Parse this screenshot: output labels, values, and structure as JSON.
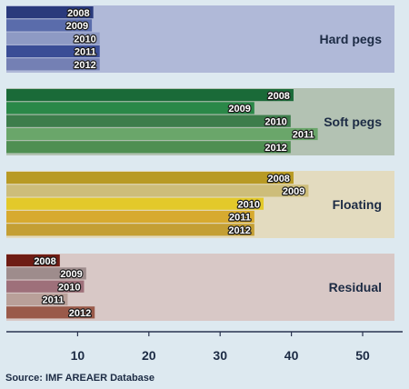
{
  "chart_data": {
    "type": "bar",
    "orientation": "horizontal",
    "source": "Source: IMF AREAER Database",
    "x_ticks": [
      10,
      20,
      30,
      40,
      50
    ],
    "xlim": [
      0,
      55
    ],
    "grid": false,
    "groups": [
      {
        "name": "Hard pegs",
        "panel_color": "#b0b9d8",
        "bars": [
          {
            "year": "2008",
            "value": 12.2,
            "color": "#2a3a7c"
          },
          {
            "year": "2009",
            "value": 12.0,
            "color": "#5a6cab"
          },
          {
            "year": "2010",
            "value": 13.1,
            "color": "#8e9ac4"
          },
          {
            "year": "2011",
            "value": 13.1,
            "color": "#3a4d96"
          },
          {
            "year": "2012",
            "value": 13.1,
            "color": "#7480b4"
          }
        ]
      },
      {
        "name": "Soft pegs",
        "panel_color": "#b3c2b3",
        "bars": [
          {
            "year": "2008",
            "value": 40.3,
            "color": "#1a6a38"
          },
          {
            "year": "2009",
            "value": 34.8,
            "color": "#2a8848"
          },
          {
            "year": "2010",
            "value": 39.9,
            "color": "#3d7d4b"
          },
          {
            "year": "2011",
            "value": 43.7,
            "color": "#6aa66a"
          },
          {
            "year": "2012",
            "value": 39.9,
            "color": "#4f8f52"
          }
        ]
      },
      {
        "name": "Floating",
        "panel_color": "#e3dbbf",
        "bars": [
          {
            "year": "2008",
            "value": 40.3,
            "color": "#b89a24"
          },
          {
            "year": "2009",
            "value": 42.4,
            "color": "#cdbd7a"
          },
          {
            "year": "2010",
            "value": 36.1,
            "color": "#e3c92a"
          },
          {
            "year": "2011",
            "value": 34.8,
            "color": "#d7aa2f"
          },
          {
            "year": "2012",
            "value": 34.8,
            "color": "#c49f34"
          }
        ]
      },
      {
        "name": "Residual",
        "panel_color": "#d8c8c6",
        "bars": [
          {
            "year": "2008",
            "value": 7.5,
            "color": "#6e1c14"
          },
          {
            "year": "2009",
            "value": 11.2,
            "color": "#9e8c8c"
          },
          {
            "year": "2010",
            "value": 10.9,
            "color": "#9e707a"
          },
          {
            "year": "2011",
            "value": 8.6,
            "color": "#b9a099"
          },
          {
            "year": "2012",
            "value": 12.4,
            "color": "#9a5a4a"
          }
        ]
      }
    ]
  }
}
